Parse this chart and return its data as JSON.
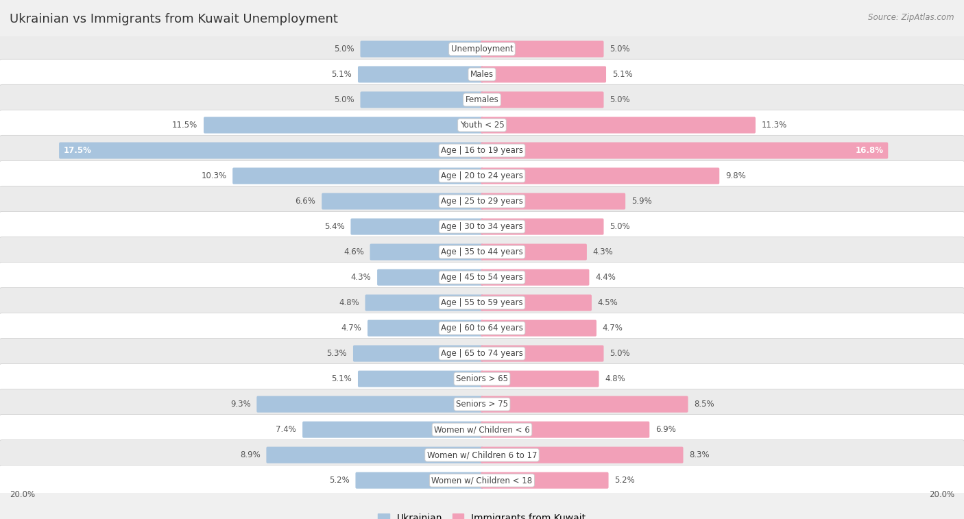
{
  "title": "Ukrainian vs Immigrants from Kuwait Unemployment",
  "source": "Source: ZipAtlas.com",
  "categories": [
    "Unemployment",
    "Males",
    "Females",
    "Youth < 25",
    "Age | 16 to 19 years",
    "Age | 20 to 24 years",
    "Age | 25 to 29 years",
    "Age | 30 to 34 years",
    "Age | 35 to 44 years",
    "Age | 45 to 54 years",
    "Age | 55 to 59 years",
    "Age | 60 to 64 years",
    "Age | 65 to 74 years",
    "Seniors > 65",
    "Seniors > 75",
    "Women w/ Children < 6",
    "Women w/ Children 6 to 17",
    "Women w/ Children < 18"
  ],
  "ukrainian": [
    5.0,
    5.1,
    5.0,
    11.5,
    17.5,
    10.3,
    6.6,
    5.4,
    4.6,
    4.3,
    4.8,
    4.7,
    5.3,
    5.1,
    9.3,
    7.4,
    8.9,
    5.2
  ],
  "kuwait": [
    5.0,
    5.1,
    5.0,
    11.3,
    16.8,
    9.8,
    5.9,
    5.0,
    4.3,
    4.4,
    4.5,
    4.7,
    5.0,
    4.8,
    8.5,
    6.9,
    8.3,
    5.2
  ],
  "max_val": 20.0,
  "blue_color": "#a8c4de",
  "pink_color": "#f2a0b8",
  "bg_color": "#f0f0f0",
  "row_light": "#ffffff",
  "row_dark": "#ebebeb",
  "title_fontsize": 13,
  "label_fontsize": 8.5,
  "value_fontsize": 8.5,
  "legend_fontsize": 10,
  "cat_fontsize": 8.5
}
